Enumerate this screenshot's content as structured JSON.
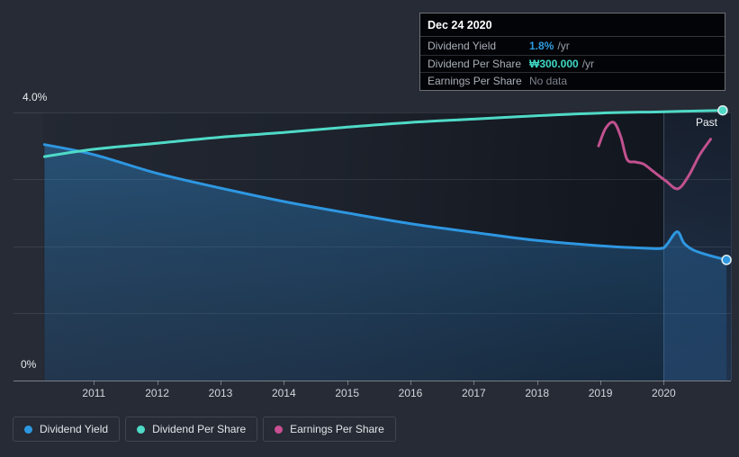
{
  "page": {
    "background": "#262b35"
  },
  "labels": {
    "past": "Past"
  },
  "tooltip": {
    "date": "Dec 24 2020",
    "rows": [
      {
        "label": "Dividend Yield",
        "value": "1.8%",
        "suffix": "/yr",
        "value_color": "#2f9ce0"
      },
      {
        "label": "Dividend Per Share",
        "value": "₩300.000",
        "suffix": "/yr",
        "value_color": "#3fd9c6"
      },
      {
        "label": "Earnings Per Share",
        "value": "No data",
        "suffix": "",
        "value_color": "#7d838b"
      }
    ]
  },
  "legend": [
    {
      "label": "Dividend Yield",
      "color": "#2e97e1"
    },
    {
      "label": "Dividend Per Share",
      "color": "#4fdac7"
    },
    {
      "label": "Earnings Per Share",
      "color": "#c94f92"
    }
  ],
  "chart_data": {
    "type": "line",
    "title": "",
    "xlabel": "",
    "ylabel": "",
    "x_axis": {
      "min": 2010.2,
      "max": 2021.06,
      "ticks": [
        2011,
        2012,
        2013,
        2014,
        2015,
        2016,
        2017,
        2018,
        2019,
        2020
      ]
    },
    "y_axis": {
      "unit": "%",
      "min": 0,
      "max": 4.16,
      "top_label": "4.0%",
      "bottom_label": "0%",
      "gridlines_pct": [
        1,
        2,
        3,
        4
      ]
    },
    "past_divider_year": 2020.0,
    "grid": true,
    "legend_position": "bottom",
    "series": [
      {
        "name": "Dividend Yield",
        "color": "#2e97e1",
        "area": true,
        "end_marker": true,
        "points": [
          [
            2010.22,
            3.52
          ],
          [
            2011,
            3.37
          ],
          [
            2012,
            3.09
          ],
          [
            2013,
            2.87
          ],
          [
            2014,
            2.67
          ],
          [
            2015,
            2.5
          ],
          [
            2016,
            2.34
          ],
          [
            2017,
            2.21
          ],
          [
            2018,
            2.09
          ],
          [
            2019,
            2.01
          ],
          [
            2019.6,
            1.98
          ],
          [
            2019.95,
            1.97
          ],
          [
            2020.05,
            2.03
          ],
          [
            2020.21,
            2.22
          ],
          [
            2020.32,
            2.05
          ],
          [
            2020.46,
            1.95
          ],
          [
            2020.67,
            1.88
          ],
          [
            2020.99,
            1.8
          ]
        ]
      },
      {
        "name": "Dividend Per Share",
        "color": "#4fdac7",
        "area": false,
        "end_marker": true,
        "points": [
          [
            2010.22,
            3.34
          ],
          [
            2011,
            3.45
          ],
          [
            2012,
            3.54
          ],
          [
            2013,
            3.63
          ],
          [
            2014,
            3.7
          ],
          [
            2015,
            3.78
          ],
          [
            2016,
            3.85
          ],
          [
            2017,
            3.9
          ],
          [
            2018,
            3.95
          ],
          [
            2019,
            3.99
          ],
          [
            2020,
            4.01
          ],
          [
            2020.93,
            4.03
          ]
        ]
      },
      {
        "name": "Earnings Per Share",
        "color": "#c1518f",
        "area": false,
        "end_marker": false,
        "points": [
          [
            2018.97,
            3.5
          ],
          [
            2019.08,
            3.76
          ],
          [
            2019.21,
            3.85
          ],
          [
            2019.32,
            3.64
          ],
          [
            2019.42,
            3.3
          ],
          [
            2019.55,
            3.26
          ],
          [
            2019.68,
            3.23
          ],
          [
            2019.82,
            3.13
          ],
          [
            2020.03,
            2.98
          ],
          [
            2020.22,
            2.86
          ],
          [
            2020.39,
            3.05
          ],
          [
            2020.57,
            3.37
          ],
          [
            2020.74,
            3.6
          ]
        ]
      }
    ]
  }
}
